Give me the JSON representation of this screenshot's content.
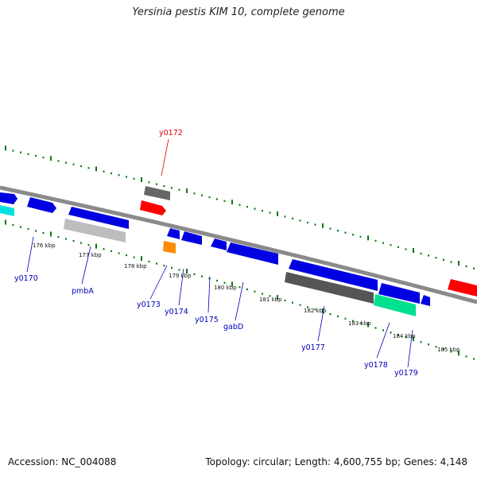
{
  "title": "Yersinia pestis KIM 10, complete genome",
  "footer": {
    "accession": "Accession: NC_004088",
    "summary": "Topology: circular; Length: 4,600,755 bp; Genes: 4,148"
  },
  "scale_labels": [
    "176 kbp",
    "177 kbp",
    "178 kbp",
    "179 kbp",
    "180 kbp",
    "181 kbp",
    "182 kbp",
    "183 kbp",
    "184 kbp",
    "185 kbp"
  ],
  "gene_labels": [
    "y0170",
    "pmbA",
    "y0172",
    "y0173",
    "y0174",
    "y0175",
    "gabD",
    "y0177",
    "y0178",
    "y0179"
  ],
  "colors": {
    "backbone": "#8a8a8a",
    "forward_gene": "#0000e0",
    "reverse_gene": "#0000e0",
    "highlight_gene": "#ff0000",
    "tick": "#0a7a0a",
    "label_blue": "#0000b8",
    "label_red": "#e00000"
  }
}
